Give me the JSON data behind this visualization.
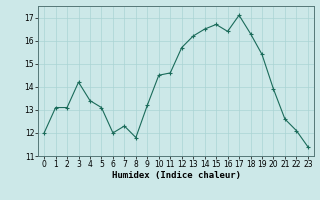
{
  "x": [
    0,
    1,
    2,
    3,
    4,
    5,
    6,
    7,
    8,
    9,
    10,
    11,
    12,
    13,
    14,
    15,
    16,
    17,
    18,
    19,
    20,
    21,
    22,
    23
  ],
  "y": [
    12.0,
    13.1,
    13.1,
    14.2,
    13.4,
    13.1,
    12.0,
    12.3,
    11.8,
    13.2,
    14.5,
    14.6,
    15.7,
    16.2,
    16.5,
    16.7,
    16.4,
    17.1,
    16.3,
    15.4,
    13.9,
    12.6,
    12.1,
    11.4
  ],
  "line_color": "#1a6b5a",
  "marker": "+",
  "bg_color": "#cce8e8",
  "grid_color": "#aad4d4",
  "xlabel": "Humidex (Indice chaleur)",
  "ylim": [
    11,
    17.5
  ],
  "xlim": [
    -0.5,
    23.5
  ],
  "yticks": [
    11,
    12,
    13,
    14,
    15,
    16,
    17
  ],
  "xticks": [
    0,
    1,
    2,
    3,
    4,
    5,
    6,
    7,
    8,
    9,
    10,
    11,
    12,
    13,
    14,
    15,
    16,
    17,
    18,
    19,
    20,
    21,
    22,
    23
  ],
  "label_fontsize": 6.5,
  "tick_fontsize": 5.5
}
